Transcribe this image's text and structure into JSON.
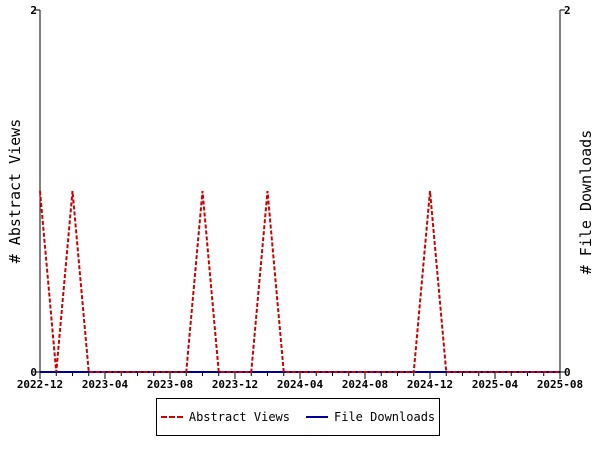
{
  "chart_data": {
    "type": "line",
    "x": [
      "2022-12",
      "2023-01",
      "2023-02",
      "2023-03",
      "2023-04",
      "2023-05",
      "2023-06",
      "2023-07",
      "2023-08",
      "2023-09",
      "2023-10",
      "2023-11",
      "2023-12",
      "2024-01",
      "2024-02",
      "2024-03",
      "2024-04",
      "2024-05",
      "2024-06",
      "2024-07",
      "2024-08",
      "2024-09",
      "2024-10",
      "2024-11",
      "2024-12",
      "2025-01",
      "2025-02",
      "2025-03",
      "2025-04",
      "2025-05",
      "2025-06",
      "2025-07",
      "2025-08"
    ],
    "xticks": [
      "2022-12",
      "2023-04",
      "2023-08",
      "2023-12",
      "2024-04",
      "2024-08",
      "2024-12",
      "2025-04",
      "2025-08"
    ],
    "series": [
      {
        "name": "Abstract Views",
        "axis": "left",
        "color": "#cc0000",
        "dash": "dashed",
        "values": [
          1,
          0,
          1,
          0,
          0,
          0,
          0,
          0,
          0,
          0,
          1,
          0,
          0,
          0,
          1,
          0,
          0,
          0,
          0,
          0,
          0,
          0,
          0,
          0,
          1,
          0,
          0,
          0,
          0,
          0,
          0,
          0,
          0
        ]
      },
      {
        "name": "File Downloads",
        "axis": "right",
        "color": "#000099",
        "dash": "solid",
        "values": [
          0,
          0,
          0,
          0,
          0,
          0,
          0,
          0,
          0,
          0,
          0,
          0,
          0,
          0,
          0,
          0,
          0,
          0,
          0,
          0,
          0,
          0,
          0,
          0,
          0,
          0,
          0,
          0,
          0,
          0,
          0,
          0,
          0
        ]
      }
    ],
    "ylabel": "# Abstract Views",
    "y2label": "# File Downloads",
    "ylim": [
      0,
      2
    ],
    "y2lim": [
      0,
      2
    ],
    "yticks": [
      "0",
      "2"
    ],
    "y2ticks": [
      "0",
      "2"
    ],
    "legend_position": "bottom",
    "grid": false
  },
  "legend": {
    "abstract_views": "Abstract Views",
    "file_downloads": "File Downloads"
  }
}
